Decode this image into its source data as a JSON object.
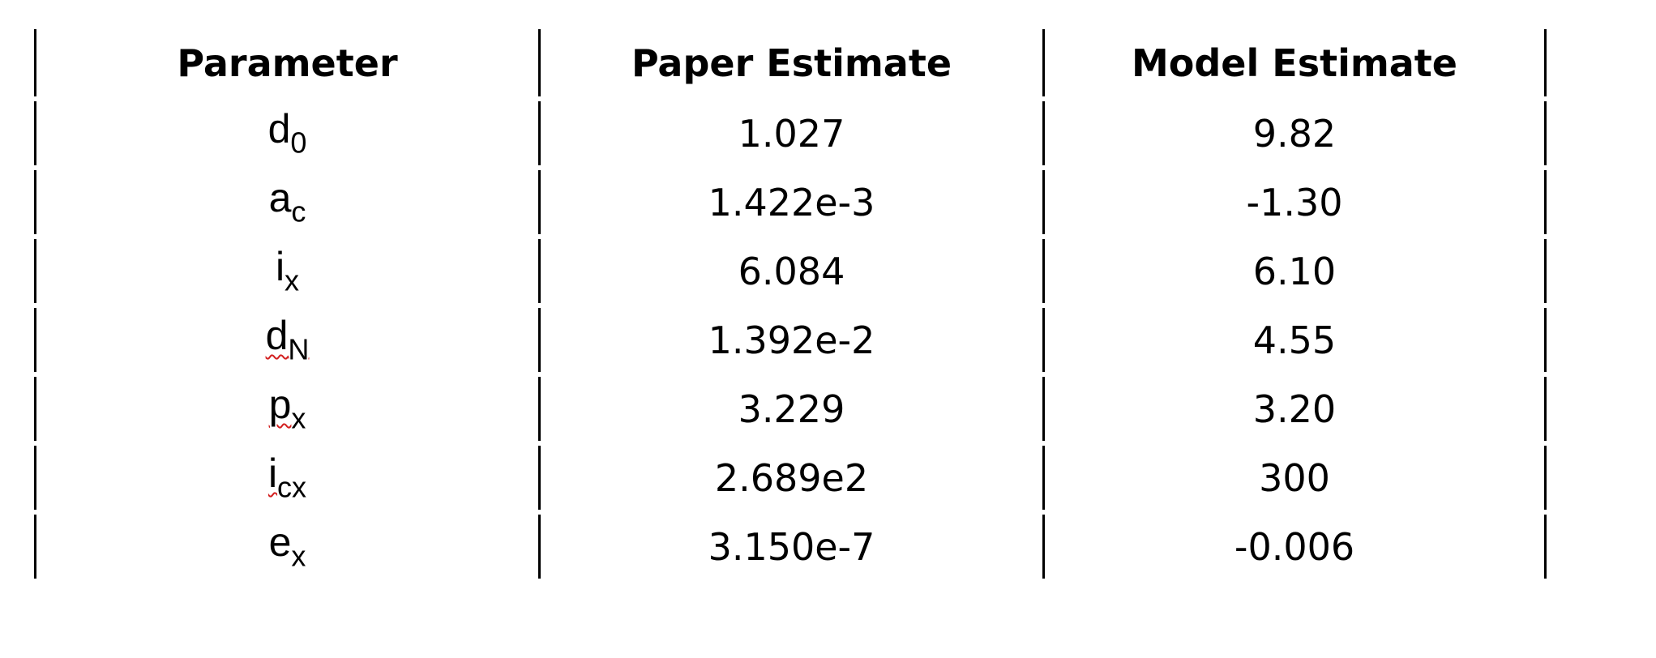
{
  "table": {
    "headers": [
      "Parameter",
      "Paper Estimate",
      "Model Estimate"
    ],
    "rows": [
      {
        "param_base": "d",
        "param_sub": "0",
        "spell_flag": false,
        "paper": "1.027",
        "model": "9.82"
      },
      {
        "param_base": "a",
        "param_sub": "c",
        "spell_flag": false,
        "paper": "1.422e-3",
        "model": "-1.30"
      },
      {
        "param_base": "i",
        "param_sub": "x",
        "spell_flag": false,
        "paper": "6.084",
        "model": "6.10"
      },
      {
        "param_base": "d",
        "param_sub": "N",
        "spell_flag": true,
        "paper": "1.392e-2",
        "model": "4.55"
      },
      {
        "param_base": "p",
        "param_sub": "x",
        "spell_flag": true,
        "paper": "3.229",
        "model": "3.20"
      },
      {
        "param_base": "i",
        "param_sub": "cx",
        "spell_flag": true,
        "paper": "2.689e2",
        "model": "300"
      },
      {
        "param_base": "e",
        "param_sub": "x",
        "spell_flag": false,
        "paper": "3.150e-7",
        "model": "-0.006"
      }
    ]
  },
  "colors": {
    "text": "#000000",
    "grid": "#000000",
    "spellcheck_underline": "#d32020"
  }
}
